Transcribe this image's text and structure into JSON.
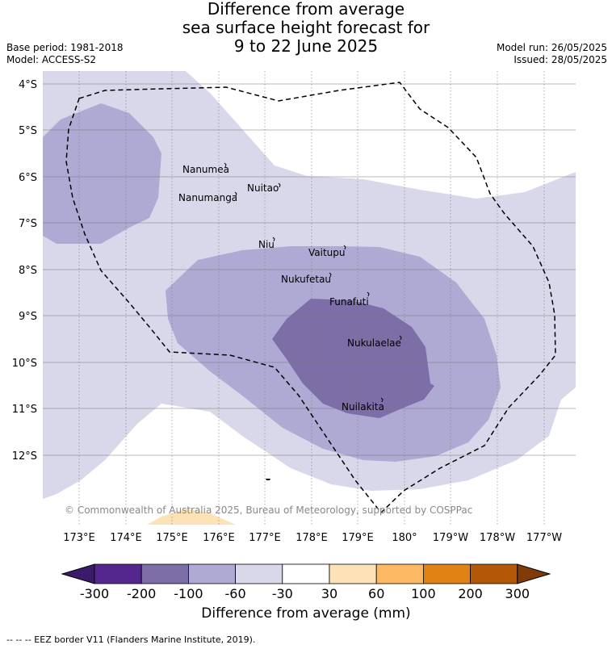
{
  "title": {
    "line1": "Difference from average",
    "line2": "sea surface height forecast for",
    "line3": "9 to 22 June 2025"
  },
  "meta": {
    "base_period": "Base period: 1981-2018",
    "model": "Model: ACCESS-S2",
    "model_run": "Model run: 26/05/2025",
    "issued": "Issued: 28/05/2025"
  },
  "map": {
    "lat_labels": [
      "4°S",
      "5°S",
      "6°S",
      "7°S",
      "8°S",
      "9°S",
      "10°S",
      "11°S",
      "12°S"
    ],
    "lon_labels": [
      "173°E",
      "174°E",
      "175°E",
      "176°E",
      "177°E",
      "178°E",
      "179°E",
      "180°",
      "179°W",
      "178°W",
      "177°W"
    ],
    "islands": [
      "Nanumea",
      "Nuitao",
      "Nanumanga",
      "Niu",
      "Vaitupu",
      "Nukufetau",
      "Funafuti",
      "Nukulaelae",
      "Nuilakita"
    ],
    "copyright": "© Commonwealth of Australia 2025, Bureau of Meteorology, supported by COSPPac"
  },
  "colorbar": {
    "ticks": [
      "-300",
      "-200",
      "-100",
      "-60",
      "-30",
      "30",
      "60",
      "100",
      "200",
      "300"
    ],
    "colors": [
      "#3b1a6b",
      "#54278f",
      "#7d6ea8",
      "#aeaad4",
      "#d8d8ea",
      "#ffffff",
      "#fde2b8",
      "#fdb863",
      "#e08214",
      "#b35806",
      "#7f3b08"
    ],
    "label": "Difference from average (mm)"
  },
  "footer": "--  --  -- EEZ border V11 (Flanders Marine Institute, 2019).",
  "palette": {
    "light": "#d8d8ea",
    "mid": "#aeaad4",
    "dark": "#7d6ea8",
    "positive": "#fde2b8"
  }
}
